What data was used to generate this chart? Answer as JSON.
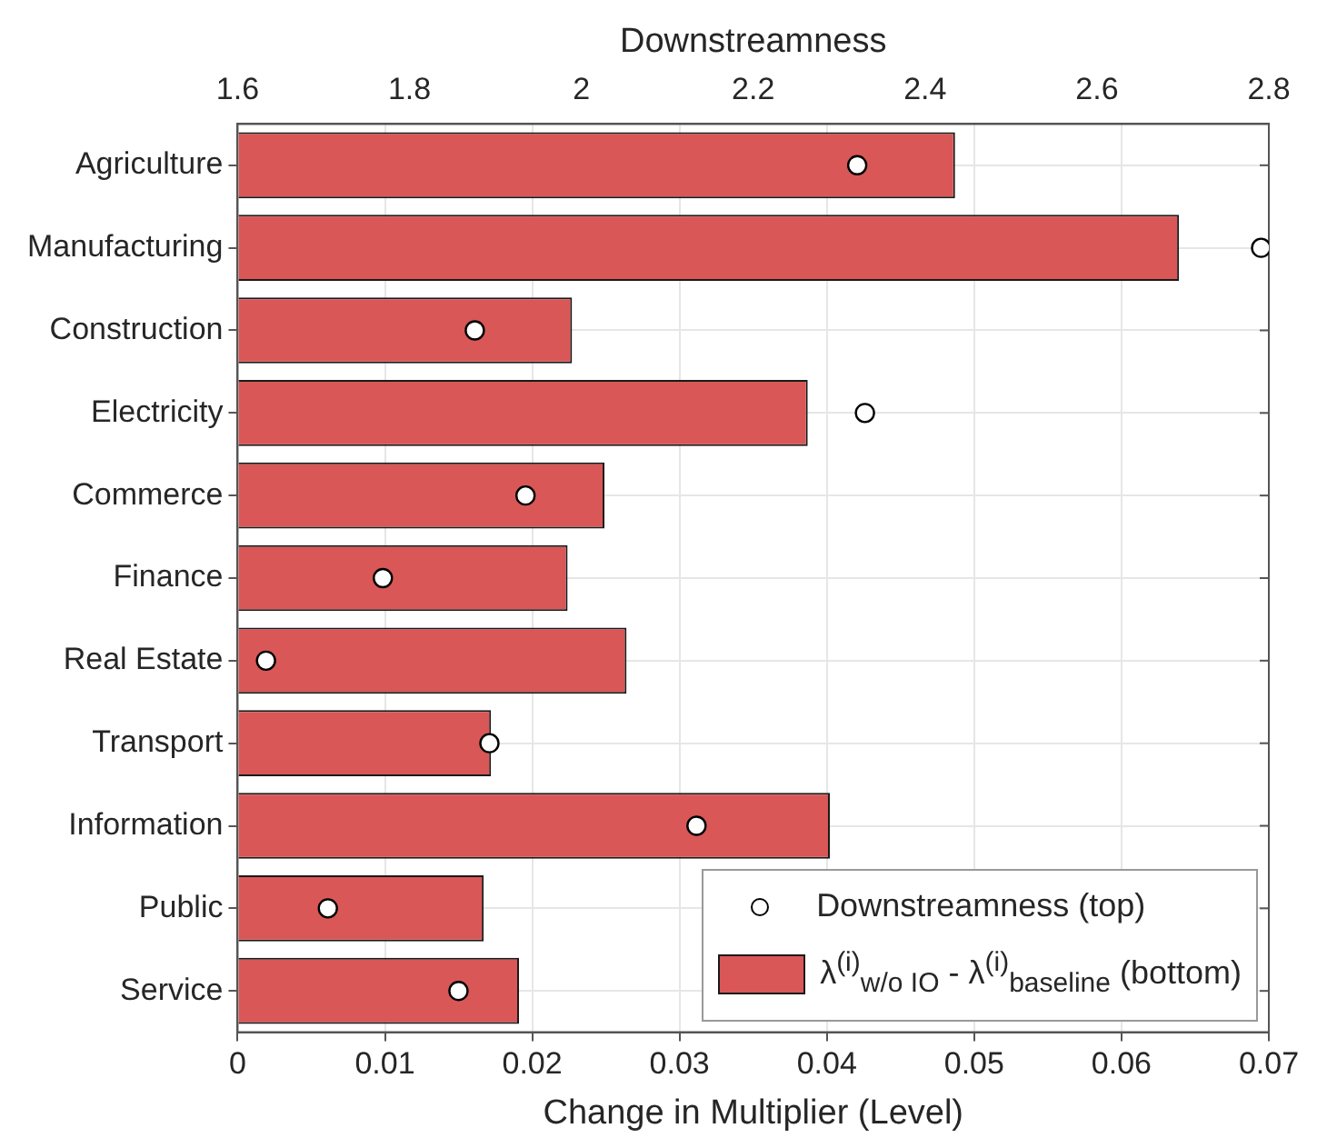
{
  "chart_data": {
    "type": "bar",
    "orientation": "horizontal",
    "xlabel": "Change in Multiplier (Level)",
    "x2label": "Downstreamness",
    "categories": [
      "Agriculture",
      "Manufacturing",
      "Construction",
      "Electricity",
      "Commerce",
      "Finance",
      "Real Estate",
      "Transport",
      "Information",
      "Public",
      "Service"
    ],
    "series": [
      {
        "name": "Downstreamness (top)",
        "type": "scatter",
        "axis": "x2",
        "color": "#ffffff",
        "values": [
          2.321,
          2.791,
          1.876,
          2.33,
          1.935,
          1.769,
          1.633,
          1.893,
          2.134,
          1.705,
          1.857
        ]
      },
      {
        "name": "λ$^{(i)}$$_{w/o IO}$ - λ$^{(i)}$$_{baseline}$ (bottom)",
        "color": "#d95757",
        "values": [
          0.0487,
          0.0639,
          0.0227,
          0.0387,
          0.0249,
          0.0224,
          0.0264,
          0.0172,
          0.0402,
          0.0167,
          0.0191
        ]
      }
    ],
    "xlim": [
      0,
      0.07
    ],
    "xticks": [
      0,
      0.01,
      0.02,
      0.03,
      0.04,
      0.05,
      0.06,
      0.07
    ],
    "x2lim": [
      1.6,
      2.8
    ],
    "x2ticks": [
      1.6,
      1.8,
      2,
      2.2,
      2.4,
      2.6,
      2.8
    ],
    "grid": true,
    "legend": "bottom right",
    "marker": "circle"
  }
}
